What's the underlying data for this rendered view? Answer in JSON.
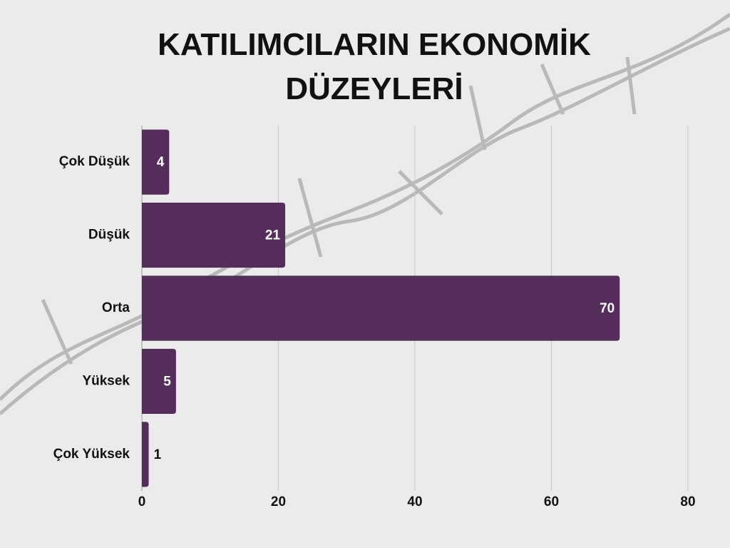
{
  "chart_data": {
    "type": "bar",
    "orientation": "horizontal",
    "title": "KATILIMCILARIN EKONOMİK DÜZEYLERİ",
    "categories": [
      "Çok Düşük",
      "Düşük",
      "Orta",
      "Yüksek",
      "Çok Yüksek"
    ],
    "values": [
      4,
      21,
      70,
      5,
      1
    ],
    "color": "#552d5b",
    "xlim": [
      0,
      80
    ],
    "xticks": [
      0,
      20,
      40,
      60,
      80
    ],
    "grid": true
  }
}
